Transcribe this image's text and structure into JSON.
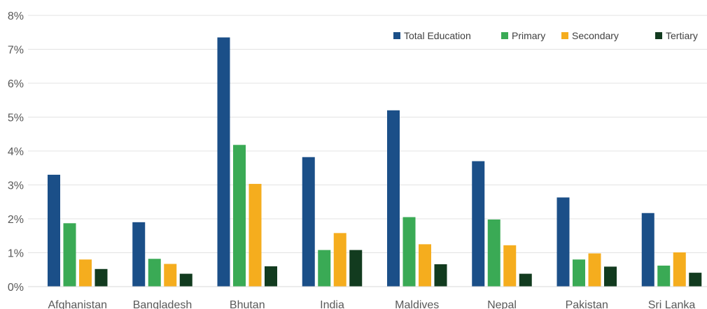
{
  "chart_data": {
    "type": "bar",
    "categories": [
      "Afghanistan",
      "Bangladesh",
      "Bhutan",
      "India",
      "Maldives",
      "Nepal",
      "Pakistan",
      "Sri Lanka"
    ],
    "series": [
      {
        "name": "Total Education",
        "color": "#1b4f88",
        "values": [
          3.3,
          1.9,
          7.35,
          3.82,
          5.2,
          3.7,
          2.63,
          2.17
        ]
      },
      {
        "name": "Primary",
        "color": "#3aaa55",
        "values": [
          1.87,
          0.82,
          4.18,
          1.08,
          2.05,
          1.98,
          0.8,
          0.62
        ]
      },
      {
        "name": "Secondary",
        "color": "#f5ad1e",
        "values": [
          0.8,
          0.67,
          3.03,
          1.58,
          1.25,
          1.22,
          0.98,
          1.01
        ]
      },
      {
        "name": "Tertiary",
        "color": "#123b1f",
        "values": [
          0.52,
          0.38,
          0.6,
          1.08,
          0.66,
          0.38,
          0.59,
          0.41
        ]
      }
    ],
    "y_ticks": [
      "0%",
      "1%",
      "2%",
      "3%",
      "4%",
      "5%",
      "6%",
      "7%",
      "8%"
    ],
    "ylim": [
      0,
      8
    ],
    "ylabel": "",
    "xlabel": "",
    "title": "",
    "grid": true,
    "legend_position": "top-right"
  }
}
